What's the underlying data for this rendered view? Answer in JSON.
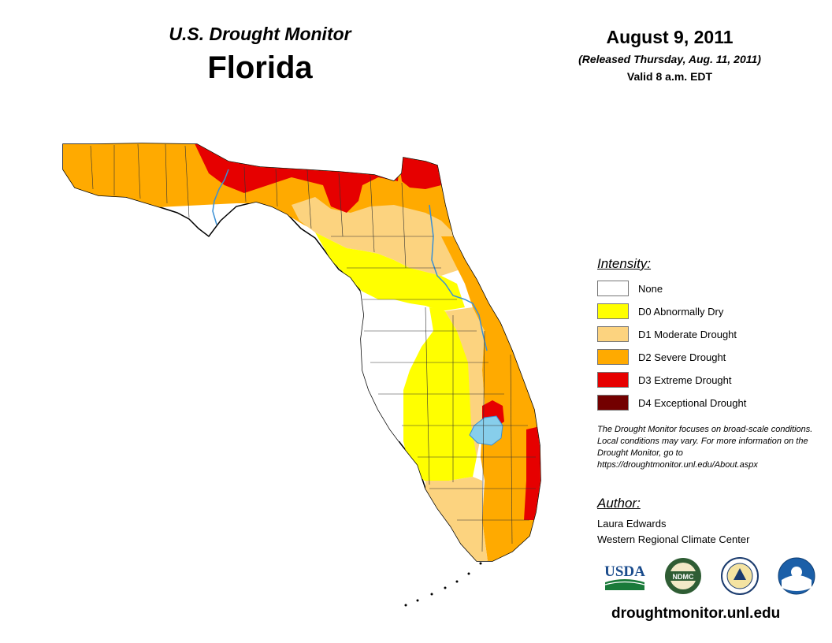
{
  "header": {
    "subtitle": "U.S. Drought Monitor",
    "title": "Florida",
    "date": "August 9, 2011",
    "released": "(Released Thursday, Aug. 11, 2011)",
    "valid": "Valid 8 a.m. EDT"
  },
  "legend": {
    "title": "Intensity:",
    "items": [
      {
        "label": "None",
        "color": "#ffffff"
      },
      {
        "label": "D0 Abnormally Dry",
        "color": "#ffff00"
      },
      {
        "label": "D1 Moderate Drought",
        "color": "#fcd37f"
      },
      {
        "label": "D2 Severe Drought",
        "color": "#ffaa00"
      },
      {
        "label": "D3 Extreme Drought",
        "color": "#e60000"
      },
      {
        "label": "D4 Exceptional Drought",
        "color": "#730000"
      }
    ]
  },
  "note": "The Drought Monitor focuses on broad-scale conditions. Local conditions may vary. For more information on the Drought Monitor, go to https://droughtmonitor.unl.edu/About.aspx",
  "author": {
    "title": "Author:",
    "name": "Laura Edwards",
    "org": "Western Regional Climate Center"
  },
  "logos": {
    "usda": "USDA",
    "ndmc": "NDMC",
    "noaa": "NOAA"
  },
  "url": "droughtmonitor.unl.edu",
  "map_colors": {
    "water": "#87ceeb",
    "river": "#3a8fd4",
    "border": "#000000"
  }
}
